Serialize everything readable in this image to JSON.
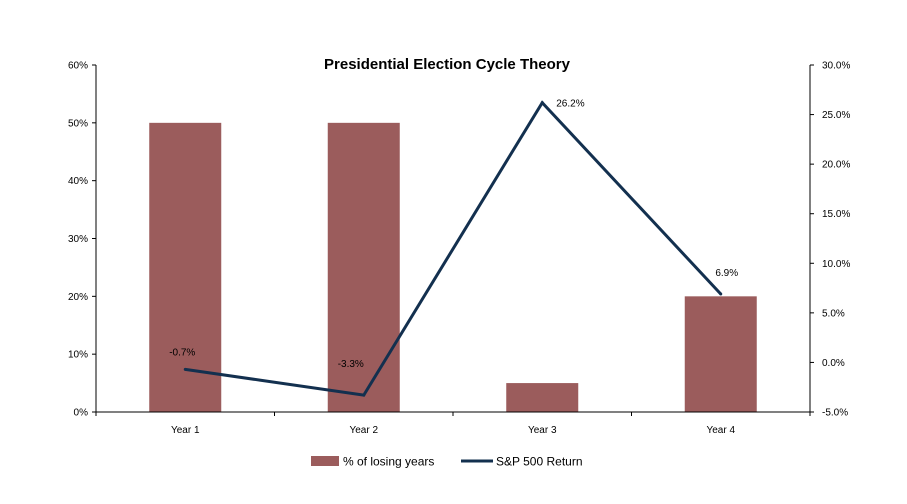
{
  "chart_data": {
    "type": "bar",
    "title": "Presidential Election Cycle Theory",
    "categories": [
      "Year 1",
      "Year 2",
      "Year 3",
      "Year 4"
    ],
    "series": [
      {
        "name": "% of losing years",
        "type": "bar",
        "axis": "left",
        "values": [
          50,
          50,
          5,
          20
        ],
        "color": "#9b5c5c"
      },
      {
        "name": "S&P 500 Return",
        "type": "line",
        "axis": "right",
        "values": [
          -0.7,
          -3.3,
          26.2,
          6.9
        ],
        "data_labels": [
          "-0.7%",
          "-3.3%",
          "26.2%",
          "6.9%"
        ],
        "color": "#13304f"
      }
    ],
    "left_axis": {
      "ylim": [
        0,
        60
      ],
      "ticks": [
        0,
        10,
        20,
        30,
        40,
        50,
        60
      ],
      "tick_labels": [
        "0%",
        "10%",
        "20%",
        "30%",
        "40%",
        "50%",
        "60%"
      ]
    },
    "right_axis": {
      "ylim": [
        -5,
        30
      ],
      "ticks": [
        -5,
        0,
        5,
        10,
        15,
        20,
        25,
        30
      ],
      "tick_labels": [
        "-5.0%",
        "0.0%",
        "5.0%",
        "10.0%",
        "15.0%",
        "20.0%",
        "25.0%",
        "30.0%"
      ]
    },
    "grid": false,
    "legend_position": "bottom"
  }
}
